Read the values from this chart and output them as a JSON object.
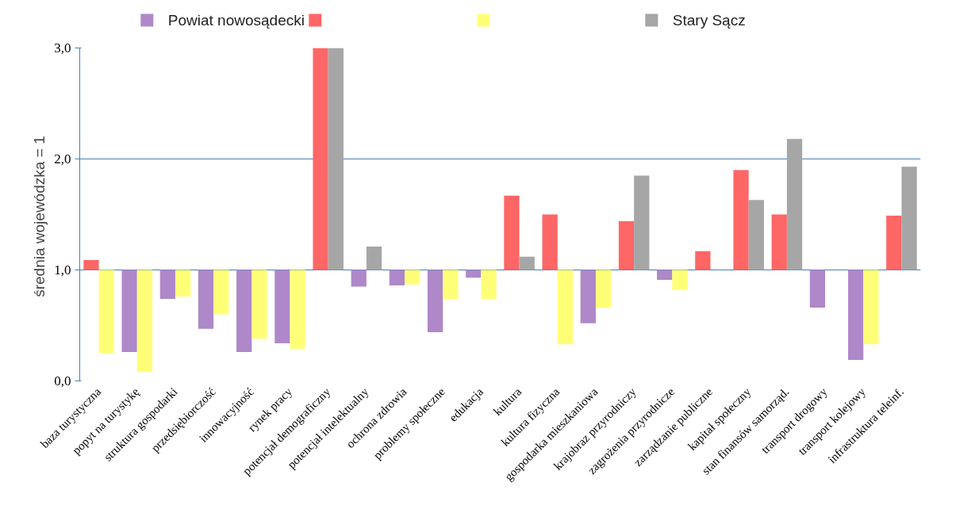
{
  "chart_data": {
    "type": "bar",
    "ylabel": "średnia wojewódzka  = 1",
    "categories": [
      "baza turystyczna",
      "popyt na turystykę",
      "struktura gospodarki",
      "przedsiębiorczość",
      "innowacyjność",
      "rynek pracy",
      "potencjał demograficzny",
      "potencjał intelektualny",
      "ochrona zdrowia",
      "problemy społeczne",
      "edukacja",
      "kultura",
      "kultura fizyczna",
      "gospodarka mieszkaniowa",
      "krajobraz przyrodniczy",
      "zagrożenia przyrodnicze",
      "zarządzanie publiczne",
      "kapitał społeczny",
      "stan finansów samorząd.",
      "transport drogowy",
      "transport kolejowy",
      "infrastruktura teleinf."
    ],
    "series": [
      {
        "name": "Powiat nowosądecki",
        "color": "#ae88c8",
        "base": [
          null,
          1,
          1,
          1,
          1,
          1,
          null,
          1,
          1,
          1,
          1,
          null,
          null,
          1,
          null,
          1,
          null,
          null,
          null,
          1,
          1,
          null
        ],
        "values": [
          null,
          -0.74,
          -0.26,
          -0.53,
          -0.74,
          -0.66,
          null,
          -0.15,
          -0.14,
          -0.56,
          -0.07,
          null,
          null,
          -0.48,
          null,
          -0.09,
          null,
          null,
          null,
          -0.34,
          -0.81,
          null
        ]
      },
      {
        "color": "#ff6666",
        "base": [
          1,
          null,
          null,
          null,
          null,
          null,
          1,
          null,
          null,
          null,
          null,
          1,
          1,
          null,
          1,
          null,
          1,
          1,
          1,
          null,
          null,
          1
        ],
        "values": [
          0.09,
          null,
          null,
          null,
          null,
          null,
          2.0,
          null,
          null,
          null,
          null,
          0.67,
          0.5,
          null,
          0.44,
          null,
          0.17,
          0.9,
          0.5,
          null,
          null,
          0.49
        ]
      },
      {
        "color": "#ffff77",
        "base": [
          1,
          1,
          1,
          1,
          1,
          1,
          null,
          null,
          1,
          1,
          1,
          null,
          1,
          1,
          null,
          1,
          null,
          null,
          null,
          null,
          1,
          null
        ],
        "values": [
          -0.75,
          -0.92,
          -0.24,
          -0.4,
          -0.62,
          -0.71,
          null,
          null,
          -0.13,
          -0.26,
          -0.26,
          null,
          -0.67,
          -0.34,
          null,
          -0.18,
          null,
          null,
          null,
          null,
          -0.67,
          null
        ]
      },
      {
        "name": "Stary Sącz",
        "color": "#a6a6a6",
        "base": [
          null,
          null,
          null,
          null,
          null,
          null,
          1,
          1,
          null,
          null,
          null,
          1,
          null,
          null,
          1,
          null,
          null,
          1,
          1,
          null,
          null,
          1
        ],
        "values": [
          null,
          null,
          null,
          null,
          null,
          null,
          2.0,
          0.21,
          null,
          null,
          null,
          0.12,
          null,
          null,
          0.85,
          null,
          null,
          0.63,
          1.18,
          null,
          null,
          0.93
        ]
      }
    ],
    "ylim": [
      0,
      3
    ],
    "yticks": [
      {
        "value": 0,
        "label": "0,0"
      },
      {
        "value": 1,
        "label": "1,0"
      },
      {
        "value": 2,
        "label": "2,0"
      },
      {
        "value": 3,
        "label": "3,0"
      }
    ],
    "grid": "y",
    "legend": "top"
  }
}
